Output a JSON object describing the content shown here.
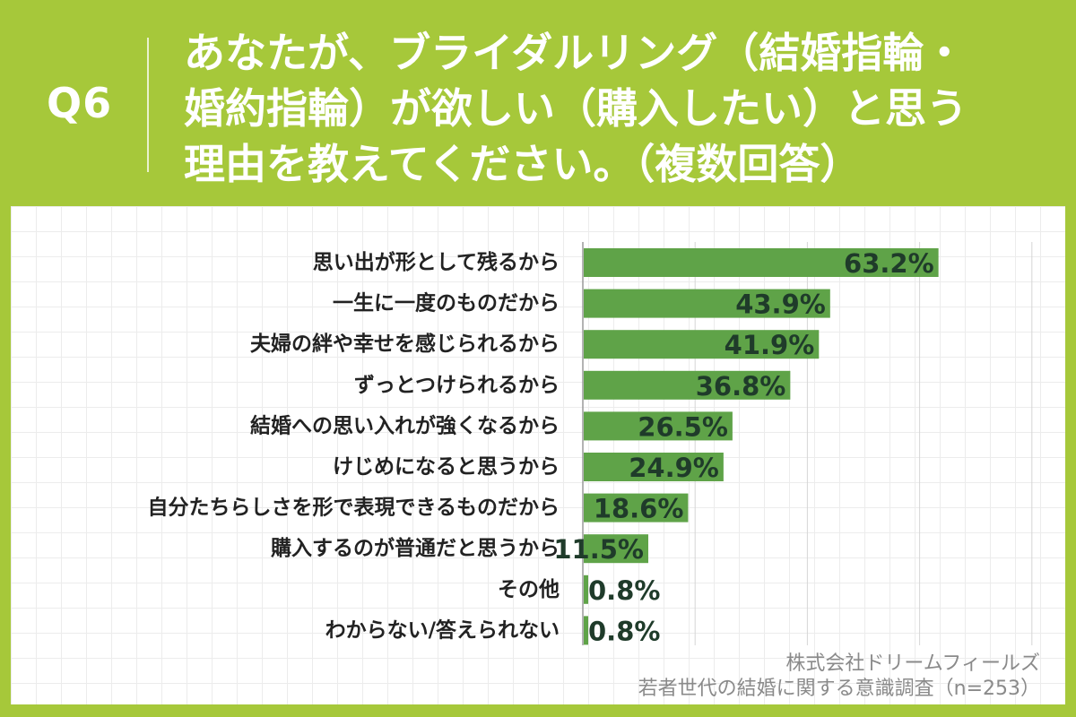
{
  "header": {
    "q_number": "Q6",
    "question_lines": [
      "あなたが、ブライダルリング（結婚指輪・",
      "婚約指輪）が欲しい（購入したい）と思う",
      "理由を教えてください。（複数回答）"
    ]
  },
  "source": {
    "company": "株式会社ドリームフィールズ",
    "survey": "若者世代の結婚に関する意識調査（n=253）"
  },
  "colors": {
    "background": "#a6c83a",
    "bar": "#5fa348",
    "value_text": "#1f3b2a"
  },
  "chart_data": {
    "type": "bar",
    "orientation": "horizontal",
    "unit": "%",
    "categories": [
      "思い出が形として残るから",
      "一生に一度のものだから",
      "夫婦の絆や幸せを感じられるから",
      "ずっとつけられるから",
      "結婚への思い入れが強くなるから",
      "けじめになると思うから",
      "自分たちらしさを形で表現できるものだから",
      "購入するのが普通だと思うから",
      "その他",
      "わからない/答えられない"
    ],
    "values": [
      63.2,
      43.9,
      41.9,
      36.8,
      26.5,
      24.9,
      18.6,
      11.5,
      0.8,
      0.8
    ],
    "value_labels": [
      "63.2%",
      "43.9%",
      "41.9%",
      "36.8%",
      "26.5%",
      "24.9%",
      "18.6%",
      "11.5%",
      "0.8%",
      "0.8%"
    ],
    "xlim": [
      0,
      80
    ],
    "grid": true
  }
}
